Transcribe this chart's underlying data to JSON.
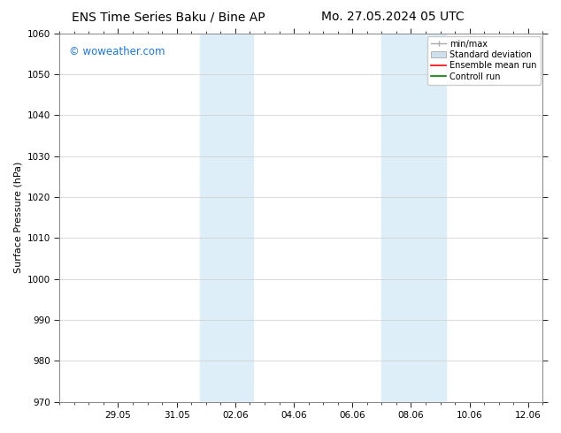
{
  "title_left": "ENS Time Series Baku / Bine AP",
  "title_right": "Mo. 27.05.2024 05 UTC",
  "ylabel": "Surface Pressure (hPa)",
  "ylim": [
    970,
    1060
  ],
  "yticks": [
    970,
    980,
    990,
    1000,
    1010,
    1020,
    1030,
    1040,
    1050,
    1060
  ],
  "xlim_min": 0.0,
  "xlim_max": 16.5,
  "xtick_labels": [
    "29.05",
    "31.05",
    "02.06",
    "04.06",
    "06.06",
    "08.06",
    "10.06",
    "12.06"
  ],
  "xtick_positions": [
    2,
    4,
    6,
    8,
    10,
    12,
    14,
    16
  ],
  "shaded_regions": [
    {
      "x_start": 4.8,
      "x_end": 6.6,
      "color": "#ddeef8"
    },
    {
      "x_start": 11.0,
      "x_end": 13.2,
      "color": "#ddeef8"
    }
  ],
  "watermark_text": "© woweather.com",
  "watermark_color": "#2277cc",
  "legend_items": [
    {
      "label": "min/max",
      "color": "#aaaaaa"
    },
    {
      "label": "Standard deviation",
      "color": "#cce0ee"
    },
    {
      "label": "Ensemble mean run",
      "color": "red"
    },
    {
      "label": "Controll run",
      "color": "green"
    }
  ],
  "grid_color": "#cccccc",
  "bg_color": "#ffffff",
  "title_fontsize": 10,
  "ylabel_fontsize": 8,
  "tick_fontsize": 7.5,
  "watermark_fontsize": 8.5,
  "legend_fontsize": 7
}
